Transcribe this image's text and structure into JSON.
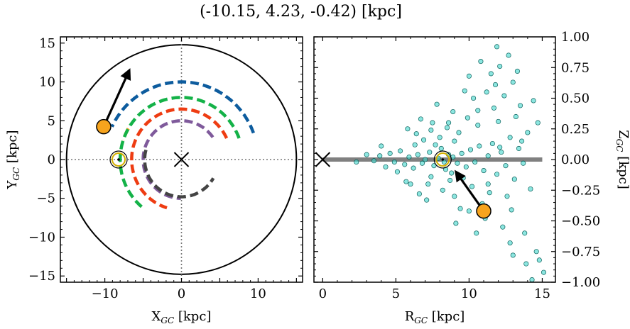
{
  "figure": {
    "title": "(-10.15, 4.23, -0.42) [kpc]"
  },
  "chart_data": [
    {
      "type": "line",
      "panel": "left",
      "xlabel_main": "X",
      "xlabel_sub": "GC",
      "xlabel_unit": " [kpc]",
      "ylabel_main": "Y",
      "ylabel_sub": "GC",
      "ylabel_unit": " [kpc]",
      "xlim": [
        -15.8,
        15.8
      ],
      "ylim": [
        -15.8,
        15.8
      ],
      "xticks": [
        -10,
        0,
        10
      ],
      "yticks": [
        -15,
        -10,
        -5,
        0,
        5,
        10,
        15
      ],
      "xtick_labels": [
        "−10",
        "0",
        "10"
      ],
      "ytick_labels": [
        "−15",
        "−10",
        "−5",
        "0",
        "5",
        "10",
        "15"
      ],
      "boundary_radius": 15,
      "galactic_center": [
        0,
        0
      ],
      "sun_position": [
        -8.2,
        0
      ],
      "object_position": [
        -10.15,
        4.23
      ],
      "velocity_arrow_end": [
        -6.8,
        11.5
      ],
      "arms": [
        {
          "color": "#0d5c9e",
          "radius": 10.0,
          "start_deg": 20,
          "end_deg": 155
        },
        {
          "color": "#f5a41f",
          "radius": 8.0,
          "start_deg": 150,
          "end_deg": 163
        },
        {
          "color": "#14b248",
          "radius": 8.0,
          "start_deg": 20,
          "end_deg": 235
        },
        {
          "color": "#ee3c12",
          "radius": 6.5,
          "start_deg": 25,
          "end_deg": 255
        },
        {
          "color": "#7f5a9b",
          "radius": 5.0,
          "start_deg": 35,
          "end_deg": 270
        },
        {
          "color": "#444444",
          "radius": 4.8,
          "start_deg": 165,
          "end_deg": 330
        }
      ],
      "grid": false,
      "reference_lines": [
        "x=0",
        "y=0"
      ]
    },
    {
      "type": "scatter",
      "panel": "right",
      "xlabel_main": "R",
      "xlabel_sub": "GC",
      "xlabel_unit": " [kpc]",
      "ylabel_main": "Z",
      "ylabel_sub": "GC",
      "ylabel_unit": " [kpc]",
      "xlim": [
        -0.6,
        15.9
      ],
      "ylim": [
        -1.0,
        1.0
      ],
      "xticks": [
        0,
        5,
        10,
        15
      ],
      "yticks": [
        -1.0,
        -0.75,
        -0.5,
        -0.25,
        0.0,
        0.25,
        0.5,
        0.75,
        1.0
      ],
      "xtick_labels": [
        "0",
        "5",
        "10",
        "15"
      ],
      "ytick_labels": [
        "−1.00",
        "−0.75",
        "−0.50",
        "−0.25",
        "0.00",
        "0.25",
        "0.50",
        "0.75",
        "1.00"
      ],
      "galactic_plane": {
        "x_range": [
          0,
          15
        ],
        "z": 0
      },
      "galactic_center": [
        0,
        0
      ],
      "sun_position": [
        8.2,
        0
      ],
      "object_position": [
        11.0,
        -0.42
      ],
      "velocity_arrow_end": [
        9.1,
        -0.1
      ],
      "points": [
        [
          7.9,
          0.01
        ],
        [
          8.3,
          -0.02
        ],
        [
          8.6,
          0.04
        ],
        [
          7.6,
          -0.05
        ],
        [
          8.9,
          0.02
        ],
        [
          7.3,
          0.06
        ],
        [
          9.2,
          -0.03
        ],
        [
          8.1,
          0.09
        ],
        [
          8.4,
          -0.08
        ],
        [
          7.0,
          0.0
        ],
        [
          9.5,
          0.05
        ],
        [
          6.8,
          -0.03
        ],
        [
          9.8,
          -0.06
        ],
        [
          7.7,
          0.12
        ],
        [
          8.8,
          -0.11
        ],
        [
          6.5,
          0.04
        ],
        [
          10.1,
          0.08
        ],
        [
          6.2,
          -0.07
        ],
        [
          10.4,
          -0.02
        ],
        [
          7.4,
          -0.14
        ],
        [
          9.0,
          0.15
        ],
        [
          5.9,
          0.02
        ],
        [
          10.7,
          0.11
        ],
        [
          5.6,
          -0.04
        ],
        [
          11.0,
          -0.09
        ],
        [
          8.0,
          0.18
        ],
        [
          8.7,
          -0.17
        ],
        [
          5.3,
          0.07
        ],
        [
          11.3,
          0.03
        ],
        [
          6.9,
          0.16
        ],
        [
          9.6,
          -0.15
        ],
        [
          11.6,
          0.13
        ],
        [
          4.9,
          -0.02
        ],
        [
          11.9,
          -0.12
        ],
        [
          7.2,
          -0.2
        ],
        [
          9.3,
          0.22
        ],
        [
          12.2,
          0.06
        ],
        [
          4.6,
          0.05
        ],
        [
          12.5,
          -0.05
        ],
        [
          6.4,
          0.21
        ],
        [
          10.2,
          -0.22
        ],
        [
          12.8,
          0.18
        ],
        [
          4.3,
          -0.06
        ],
        [
          8.5,
          0.26
        ],
        [
          8.2,
          -0.25
        ],
        [
          13.1,
          -0.16
        ],
        [
          3.9,
          0.03
        ],
        [
          13.4,
          0.09
        ],
        [
          7.5,
          0.3
        ],
        [
          10.6,
          0.28
        ],
        [
          6.6,
          -0.28
        ],
        [
          11.4,
          -0.27
        ],
        [
          13.7,
          -0.03
        ],
        [
          3.5,
          -0.01
        ],
        [
          14.0,
          0.22
        ],
        [
          9.9,
          0.34
        ],
        [
          5.8,
          0.25
        ],
        [
          12.0,
          0.31
        ],
        [
          7.1,
          -0.33
        ],
        [
          12.6,
          -0.3
        ],
        [
          8.9,
          0.39
        ],
        [
          10.9,
          -0.36
        ],
        [
          13.2,
          0.35
        ],
        [
          6.0,
          -0.2
        ],
        [
          11.7,
          0.42
        ],
        [
          9.4,
          -0.4
        ],
        [
          12.9,
          -0.41
        ],
        [
          7.8,
          0.45
        ],
        [
          14.2,
          -0.24
        ],
        [
          10.3,
          0.5
        ],
        [
          11.1,
          -0.48
        ],
        [
          12.4,
          0.52
        ],
        [
          13.5,
          0.44
        ],
        [
          9.7,
          0.56
        ],
        [
          11.8,
          0.61
        ],
        [
          12.3,
          -0.55
        ],
        [
          13.0,
          0.63
        ],
        [
          10.0,
          0.68
        ],
        [
          11.5,
          0.7
        ],
        [
          12.1,
          0.76
        ],
        [
          10.8,
          0.8
        ],
        [
          12.7,
          0.85
        ],
        [
          11.9,
          0.92
        ],
        [
          13.3,
          0.72
        ],
        [
          14.4,
          0.48
        ],
        [
          13.8,
          -0.6
        ],
        [
          14.6,
          -0.75
        ],
        [
          15.1,
          -0.92
        ],
        [
          12.8,
          -0.68
        ],
        [
          13.9,
          -0.85
        ],
        [
          14.8,
          -0.82
        ],
        [
          10.5,
          -0.6
        ],
        [
          9.1,
          -0.52
        ],
        [
          14.3,
          -0.98
        ],
        [
          13.0,
          -0.78
        ],
        [
          11.2,
          0.55
        ],
        [
          6.3,
          0.12
        ],
        [
          5.1,
          -0.1
        ],
        [
          4.0,
          0.11
        ],
        [
          2.3,
          -0.02
        ],
        [
          3.0,
          0.04
        ],
        [
          5.7,
          -0.18
        ],
        [
          6.7,
          0.33
        ],
        [
          7.4,
          0.24
        ],
        [
          8.6,
          0.3
        ],
        [
          9.0,
          -0.3
        ],
        [
          10.0,
          -0.42
        ],
        [
          10.6,
          0.4
        ],
        [
          11.3,
          -0.2
        ],
        [
          12.1,
          0.1
        ],
        [
          13.6,
          0.15
        ],
        [
          14.7,
          0.3
        ]
      ],
      "grid": false
    }
  ],
  "colors": {
    "scatter_fill": "#3fd6cc",
    "scatter_edge": "#0a5f5a",
    "object_fill": "#f7a41d",
    "sun_ring": "#d4b000",
    "plane": "#808080"
  }
}
